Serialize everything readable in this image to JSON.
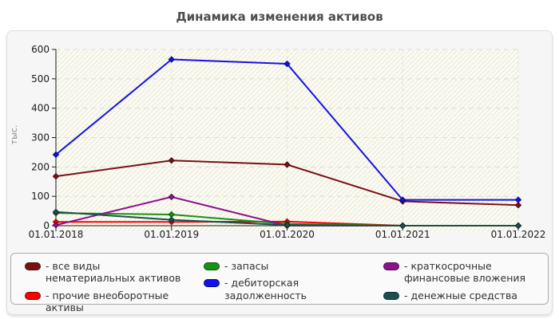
{
  "chart_data": {
    "type": "line",
    "title": "Динамика изменения активов",
    "ylabel": "тыс.",
    "xlabel": "",
    "x": [
      "01.01.2018",
      "01.01.2019",
      "01.01.2020",
      "01.01.2021",
      "01.01.2022"
    ],
    "yticks": [
      0,
      100,
      200,
      300,
      400,
      500,
      600
    ],
    "ylim": [
      0,
      600
    ],
    "grid": true,
    "legend_position": "bottom",
    "plot_background": "#FBFBF0",
    "hatch_color": "#E7E7E0",
    "grid_color": "#DBDBDB",
    "axis_color": "#1A1A1A",
    "tick_label_color": "#1A1A1A",
    "ylabel_color": "#8A8A8A",
    "series": [
      {
        "name": "все виды нематериальных активов",
        "color": "#7B1113",
        "values": [
          168,
          222,
          208,
          83,
          70
        ]
      },
      {
        "name": "прочие внеоборотные активы",
        "color": "#FE0000",
        "values": [
          13,
          13,
          14,
          0,
          0
        ]
      },
      {
        "name": "запасы",
        "color": "#149314",
        "values": [
          43,
          38,
          6,
          0,
          0
        ]
      },
      {
        "name": "дебиторская задолженность",
        "color": "#1212E8",
        "values": [
          242,
          566,
          551,
          88,
          88
        ]
      },
      {
        "name": "краткосрочные финансовые вложения",
        "color": "#8E128E",
        "values": [
          2,
          98,
          0,
          0,
          0
        ]
      },
      {
        "name": "денежные средства",
        "color": "#1C5050",
        "values": [
          47,
          20,
          2,
          0,
          0
        ]
      }
    ],
    "legend_columns": [
      [
        0,
        1
      ],
      [
        2,
        3
      ],
      [
        4,
        5
      ]
    ],
    "legend_item_prefix": "- "
  }
}
